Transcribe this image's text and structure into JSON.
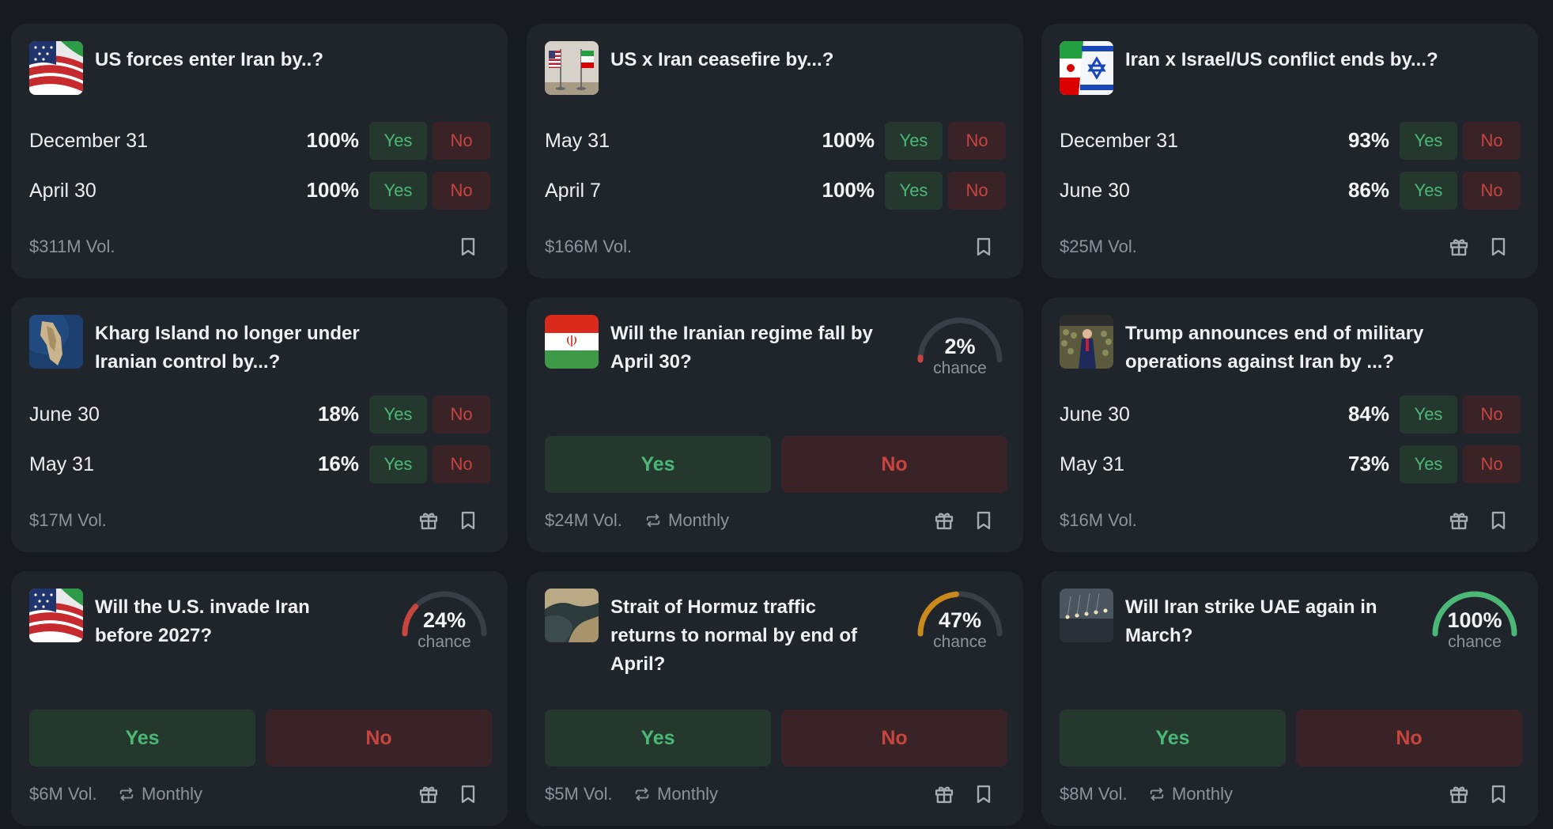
{
  "colors": {
    "background": "#171a20",
    "card": "#20242b",
    "yes_bg": "#25382e",
    "yes_text": "#4cb878",
    "no_bg": "#3a2326",
    "no_text": "#c8453f",
    "muted": "#8e939b"
  },
  "markets": [
    {
      "title": "US forces enter Iran by..?",
      "thumb_icon": "us-iran-flag-icon",
      "outcomes": [
        {
          "label": "December 31",
          "pct": "100%",
          "yes": "Yes",
          "no": "No"
        },
        {
          "label": "April 30",
          "pct": "100%",
          "yes": "Yes",
          "no": "No"
        }
      ],
      "volume": "$311M Vol."
    },
    {
      "title": "US x Iran ceasefire by...?",
      "thumb_icon": "us-iran-desk-flags-icon",
      "outcomes": [
        {
          "label": "May 31",
          "pct": "100%",
          "yes": "Yes",
          "no": "No"
        },
        {
          "label": "April 7",
          "pct": "100%",
          "yes": "Yes",
          "no": "No"
        }
      ],
      "volume": "$166M Vol."
    },
    {
      "title": "Iran x Israel/US conflict ends by...?",
      "thumb_icon": "iran-israel-flag-icon",
      "outcomes": [
        {
          "label": "December 31",
          "pct": "93%",
          "yes": "Yes",
          "no": "No"
        },
        {
          "label": "June 30",
          "pct": "86%",
          "yes": "Yes",
          "no": "No"
        }
      ],
      "volume": "$25M Vol."
    },
    {
      "title": "Kharg Island no longer under Iranian control by...?",
      "thumb_icon": "island-satellite-icon",
      "outcomes": [
        {
          "label": "June 30",
          "pct": "18%",
          "yes": "Yes",
          "no": "No"
        },
        {
          "label": "May 31",
          "pct": "16%",
          "yes": "Yes",
          "no": "No"
        }
      ],
      "volume": "$17M Vol."
    },
    {
      "title": "Will the Iranian regime fall by April 30?",
      "thumb_icon": "iran-flag-icon",
      "chance": {
        "value": "2%",
        "label": "chance",
        "fraction": 0.02,
        "color": "#c8453f"
      },
      "yes": "Yes",
      "no": "No",
      "volume": "$24M Vol.",
      "frequency": "Monthly"
    },
    {
      "title": "Trump announces end of military operations against Iran by ...?",
      "thumb_icon": "trump-podium-icon",
      "outcomes": [
        {
          "label": "June 30",
          "pct": "84%",
          "yes": "Yes",
          "no": "No"
        },
        {
          "label": "May 31",
          "pct": "73%",
          "yes": "Yes",
          "no": "No"
        }
      ],
      "volume": "$16M Vol."
    },
    {
      "title": "Will the U.S. invade Iran before 2027?",
      "thumb_icon": "us-iran-flag-icon",
      "chance": {
        "value": "24%",
        "label": "chance",
        "fraction": 0.24,
        "color": "#c8453f"
      },
      "yes": "Yes",
      "no": "No",
      "volume": "$6M Vol.",
      "frequency": "Monthly"
    },
    {
      "title": "Strait of Hormuz traffic returns to normal by end of April?",
      "thumb_icon": "strait-map-icon",
      "chance": {
        "value": "47%",
        "label": "chance",
        "fraction": 0.47,
        "color": "#c9891c"
      },
      "yes": "Yes",
      "no": "No",
      "volume": "$5M Vol.",
      "frequency": "Monthly"
    },
    {
      "title": "Will Iran strike UAE again in March?",
      "thumb_icon": "missile-strike-icon",
      "chance": {
        "value": "100%",
        "label": "chance",
        "fraction": 1.0,
        "color": "#4cb878"
      },
      "yes": "Yes",
      "no": "No",
      "volume": "$8M Vol.",
      "frequency": "Monthly"
    }
  ]
}
